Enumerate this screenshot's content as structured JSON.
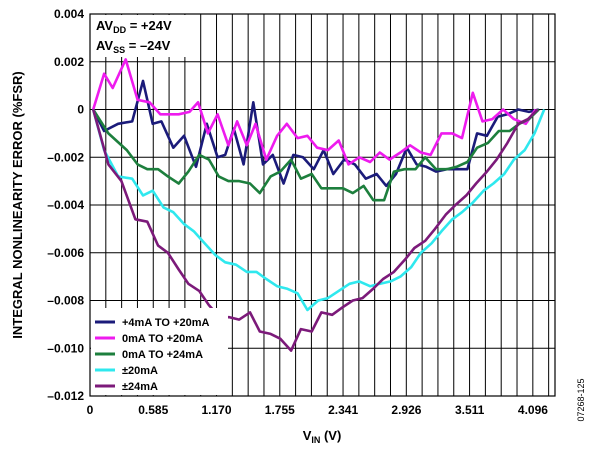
{
  "chart_data": {
    "type": "line",
    "xlabel_main": "V",
    "xlabel_sub": "IN",
    "xlabel_unit": " (V)",
    "ylabel": "INTEGRAL NONLINEARITY ERROR (%FSR)",
    "xlim": [
      0,
      4.3
    ],
    "ylim": [
      -0.012,
      0.004
    ],
    "x_ticks": [
      0,
      0.585,
      1.17,
      1.755,
      2.341,
      2.926,
      3.511,
      4.096
    ],
    "x_tick_labels": [
      "0",
      "0.585",
      "1.170",
      "1.755",
      "2.341",
      "2.926",
      "3.511",
      "4.096"
    ],
    "y_ticks": [
      0.004,
      0.002,
      0,
      -0.002,
      -0.004,
      -0.006,
      -0.008,
      -0.01,
      -0.012
    ],
    "y_tick_labels": [
      "0.004",
      "0.002",
      "0",
      "–0.002",
      "–0.004",
      "–0.006",
      "–0.008",
      "–0.010",
      "–0.012"
    ],
    "grid": true,
    "legend_position": "bottom-left",
    "annotation": {
      "line1_main": "AV",
      "line1_sub": "DD",
      "line1_rest": " = +24V",
      "line2_main": "AV",
      "line2_sub": "SS",
      "line2_rest": " = –24V"
    },
    "series": [
      {
        "name": "+4mA TO +20mA",
        "color": "#1b1b7a",
        "x": [
          0.03,
          0.13,
          0.26,
          0.39,
          0.49,
          0.58,
          0.66,
          0.77,
          0.87,
          0.98,
          1.08,
          1.18,
          1.25,
          1.33,
          1.42,
          1.51,
          1.6,
          1.69,
          1.79,
          1.88,
          1.97,
          2.07,
          2.16,
          2.25,
          2.35,
          2.45,
          2.55,
          2.65,
          2.74,
          2.83,
          2.93,
          3.02,
          3.11,
          3.2,
          3.3,
          3.4,
          3.49,
          3.58,
          3.67,
          3.77,
          3.86,
          3.96,
          4.06,
          4.15
        ],
        "y": [
          0.0,
          -0.0009,
          -0.0006,
          -0.0005,
          0.0012,
          -0.0006,
          -0.0005,
          -0.0016,
          -0.0011,
          -0.0024,
          -0.0006,
          -0.002,
          -0.0019,
          -0.0008,
          -0.0023,
          0.0003,
          -0.0023,
          -0.0019,
          -0.0031,
          -0.0019,
          -0.002,
          -0.0025,
          -0.0017,
          -0.0027,
          -0.0021,
          -0.0023,
          -0.0029,
          -0.0027,
          -0.0032,
          -0.0027,
          -0.0016,
          -0.0023,
          -0.0024,
          -0.0026,
          -0.0025,
          -0.0025,
          -0.0025,
          -0.001,
          -0.0011,
          -0.0003,
          -0.0002,
          0.0,
          -0.0001,
          0.0
        ]
      },
      {
        "name": "0mA TO +20mA",
        "color": "#ee1bee",
        "x": [
          0.03,
          0.13,
          0.21,
          0.33,
          0.44,
          0.55,
          0.65,
          0.73,
          0.82,
          0.92,
          1.0,
          1.09,
          1.18,
          1.28,
          1.36,
          1.45,
          1.53,
          1.63,
          1.73,
          1.82,
          1.92,
          2.01,
          2.1,
          2.2,
          2.3,
          2.39,
          2.49,
          2.59,
          2.68,
          2.77,
          2.87,
          2.96,
          3.06,
          3.15,
          3.25,
          3.35,
          3.44,
          3.54,
          3.63,
          3.72,
          3.82,
          3.92,
          4.03,
          4.12
        ],
        "y": [
          0.0,
          0.0015,
          0.0009,
          0.0021,
          0.0004,
          0.0003,
          -0.0002,
          -0.0002,
          -0.0002,
          -0.0001,
          0.0003,
          -0.001,
          -0.0002,
          -0.0015,
          -0.0005,
          -0.0015,
          -0.0006,
          -0.0021,
          -0.0011,
          -0.0006,
          -0.0012,
          -0.0011,
          -0.0016,
          -0.0017,
          -0.0013,
          -0.0023,
          -0.002,
          -0.0022,
          -0.0018,
          -0.0021,
          -0.0018,
          -0.0015,
          -0.0018,
          -0.0019,
          -0.001,
          -0.001,
          -0.0012,
          0.0007,
          -0.0005,
          -0.0004,
          0.0,
          -0.0004,
          -0.0006,
          0.0
        ]
      },
      {
        "name": "0mA TO +24mA",
        "color": "#1d7f3d",
        "x": [
          0.03,
          0.17,
          0.34,
          0.44,
          0.53,
          0.63,
          0.72,
          0.82,
          0.91,
          1.01,
          1.1,
          1.19,
          1.28,
          1.38,
          1.48,
          1.57,
          1.67,
          1.76,
          1.86,
          1.95,
          2.05,
          2.14,
          2.24,
          2.34,
          2.43,
          2.53,
          2.62,
          2.72,
          2.81,
          2.91,
          3.01,
          3.1,
          3.2,
          3.3,
          3.39,
          3.49,
          3.58,
          3.68,
          3.78,
          3.88,
          3.97,
          4.06,
          4.15
        ],
        "y": [
          0.0,
          -0.001,
          -0.0017,
          -0.0023,
          -0.0025,
          -0.0025,
          -0.0028,
          -0.0031,
          -0.0026,
          -0.0019,
          -0.0021,
          -0.0028,
          -0.003,
          -0.003,
          -0.0031,
          -0.0035,
          -0.0028,
          -0.0026,
          -0.0021,
          -0.0029,
          -0.0027,
          -0.0033,
          -0.0033,
          -0.0033,
          -0.0035,
          -0.0032,
          -0.0038,
          -0.0038,
          -0.0026,
          -0.0025,
          -0.0025,
          -0.002,
          -0.0025,
          -0.0025,
          -0.0024,
          -0.0022,
          -0.0016,
          -0.0014,
          -0.0009,
          -0.0009,
          -0.0006,
          -0.0004,
          0.0
        ]
      },
      {
        "name": "±20mA",
        "color": "#2fe8ee",
        "x": [
          0.03,
          0.13,
          0.26,
          0.39,
          0.49,
          0.58,
          0.68,
          0.77,
          0.87,
          0.96,
          1.06,
          1.16,
          1.25,
          1.35,
          1.45,
          1.54,
          1.63,
          1.73,
          1.82,
          1.92,
          2.01,
          2.11,
          2.2,
          2.3,
          2.4,
          2.49,
          2.59,
          2.68,
          2.78,
          2.87,
          2.97,
          3.06,
          3.16,
          3.25,
          3.35,
          3.44,
          3.54,
          3.64,
          3.73,
          3.83,
          3.92,
          4.02,
          4.11,
          4.2
        ],
        "y": [
          0.0,
          -0.0017,
          -0.0028,
          -0.0029,
          -0.0036,
          -0.0034,
          -0.0041,
          -0.0043,
          -0.0048,
          -0.0051,
          -0.0056,
          -0.0061,
          -0.0064,
          -0.0065,
          -0.0068,
          -0.0068,
          -0.0071,
          -0.0074,
          -0.0075,
          -0.0077,
          -0.0084,
          -0.008,
          -0.0079,
          -0.0076,
          -0.0073,
          -0.0072,
          -0.0074,
          -0.0073,
          -0.0072,
          -0.007,
          -0.0066,
          -0.006,
          -0.0056,
          -0.0051,
          -0.0046,
          -0.0043,
          -0.0039,
          -0.0034,
          -0.0031,
          -0.0027,
          -0.0021,
          -0.0017,
          -0.001,
          0.0
        ]
      },
      {
        "name": "±24mA",
        "color": "#7c1a7a",
        "x": [
          0.03,
          0.17,
          0.29,
          0.42,
          0.53,
          0.63,
          0.72,
          0.82,
          0.91,
          1.01,
          1.1,
          1.2,
          1.29,
          1.38,
          1.48,
          1.57,
          1.67,
          1.76,
          1.86,
          1.95,
          2.05,
          2.14,
          2.24,
          2.33,
          2.43,
          2.52,
          2.62,
          2.71,
          2.81,
          2.91,
          3.0,
          3.1,
          3.19,
          3.29,
          3.38,
          3.48,
          3.57,
          3.67,
          3.76,
          3.86,
          3.96,
          4.05,
          4.14
        ],
        "y": [
          0.0,
          -0.0023,
          -0.003,
          -0.0046,
          -0.0047,
          -0.0057,
          -0.006,
          -0.0067,
          -0.0073,
          -0.0076,
          -0.0082,
          -0.0087,
          -0.0087,
          -0.0088,
          -0.0085,
          -0.0093,
          -0.0094,
          -0.0096,
          -0.0101,
          -0.0092,
          -0.0093,
          -0.0085,
          -0.0086,
          -0.0083,
          -0.008,
          -0.0079,
          -0.0075,
          -0.0071,
          -0.0068,
          -0.0063,
          -0.0058,
          -0.0055,
          -0.005,
          -0.0044,
          -0.004,
          -0.0036,
          -0.0031,
          -0.0026,
          -0.0021,
          -0.0014,
          -0.0006,
          -0.0004,
          0.0
        ]
      }
    ]
  },
  "figure_id": "07268-125"
}
